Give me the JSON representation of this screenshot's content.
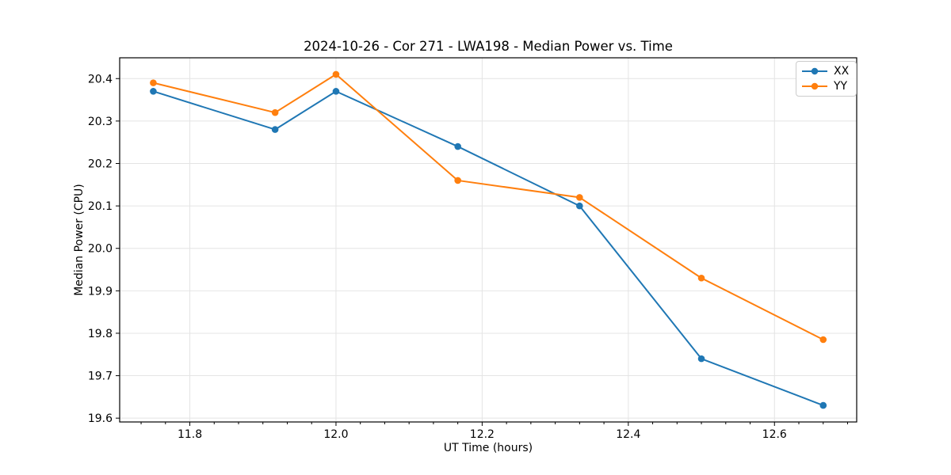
{
  "chart_data": {
    "type": "line",
    "title": "2024-10-26 - Cor 271 - LWA198 - Median Power vs. Time",
    "xlabel": "UT Time (hours)",
    "ylabel": "Median Power (CPU)",
    "x": [
      11.75,
      11.9167,
      12.0,
      12.1667,
      12.3333,
      12.5,
      12.6667
    ],
    "series": [
      {
        "name": "XX",
        "color": "#1f77b4",
        "values": [
          20.37,
          20.28,
          20.37,
          20.24,
          20.1,
          19.74,
          19.63
        ]
      },
      {
        "name": "YY",
        "color": "#ff7f0e",
        "values": [
          20.39,
          20.32,
          20.41,
          20.16,
          20.12,
          19.93,
          19.785
        ]
      }
    ],
    "xlim": [
      11.704,
      12.7125
    ],
    "ylim": [
      19.591,
      20.449
    ],
    "x_tick_values": [
      11.8,
      12.0,
      12.2,
      12.4,
      12.6
    ],
    "x_tick_labels": [
      "11.8",
      "12.0",
      "12.2",
      "12.4",
      "12.6"
    ],
    "x_minor_ticks_per_major": 6,
    "y_tick_values": [
      19.6,
      19.7,
      19.8,
      19.9,
      20.0,
      20.1,
      20.2,
      20.3,
      20.4
    ],
    "y_tick_labels": [
      "19.6",
      "19.7",
      "19.8",
      "19.9",
      "20.0",
      "20.1",
      "20.2",
      "20.3",
      "20.4"
    ],
    "grid": true,
    "grid_color": "#e4e4e4",
    "axis_color": "#000000",
    "background_color": "#ffffff",
    "legend_position": "top-right",
    "legend_entries": [
      "XX",
      "YY"
    ],
    "marker": "circle"
  }
}
